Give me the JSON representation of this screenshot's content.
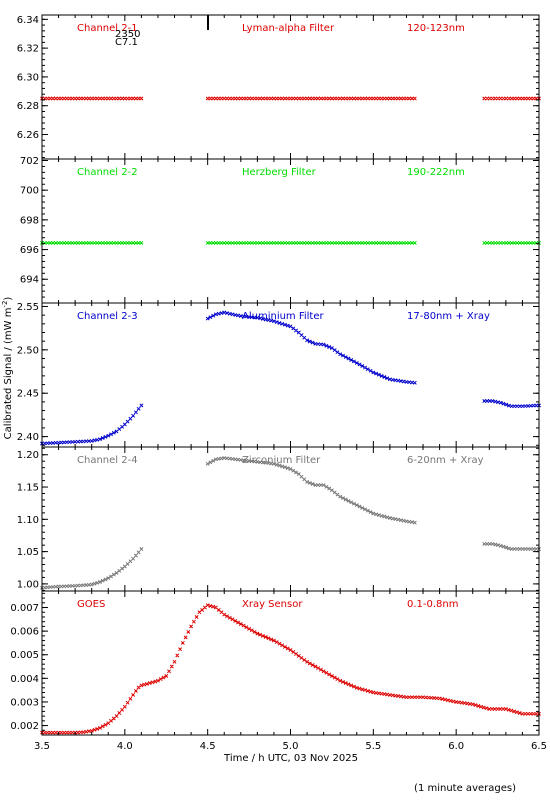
{
  "figure": {
    "xlabel": "Time / h UTC, 03 Nov 2025",
    "ylabel": "Calibrated Signal / (mW m",
    "ylabel_sup": "-2",
    "ylabel_close": ")",
    "footnote": "(1 minute averages)",
    "marker_text_1": "2350",
    "marker_text_2": "C7.1",
    "colors": {
      "red": "#dd0000",
      "green": "#00dd00",
      "blue": "#0000cc",
      "gray": "#777777"
    }
  },
  "chart_data": [
    {
      "type": "scatter",
      "name": "Channel 2-1",
      "filter": "Lyman-alpha Filter",
      "band": "120-123nm",
      "color": "#dd0000",
      "xlim": [
        3.5,
        6.5
      ],
      "ylim": [
        6.243,
        6.343
      ],
      "yticks": [
        6.26,
        6.28,
        6.3,
        6.32,
        6.34
      ],
      "yticklabels": [
        "6.26",
        "6.28",
        "6.30",
        "6.32",
        "6.34"
      ],
      "segments": [
        {
          "x": [
            3.5,
            4.1
          ],
          "y": [
            6.285,
            6.285
          ]
        },
        {
          "x": [
            4.5,
            5.75
          ],
          "y": [
            6.285,
            6.285
          ]
        },
        {
          "x": [
            6.17,
            6.5
          ],
          "y": [
            6.285,
            6.285
          ]
        }
      ]
    },
    {
      "type": "scatter",
      "name": "Channel 2-2",
      "filter": "Herzberg Filter",
      "band": "190-222nm",
      "color": "#00dd00",
      "xlim": [
        3.5,
        6.5
      ],
      "ylim": [
        692.4,
        702.1
      ],
      "yticks": [
        694,
        696,
        698,
        700,
        702
      ],
      "yticklabels": [
        "694",
        "696",
        "698",
        "700",
        "702"
      ],
      "segments": [
        {
          "x": [
            3.5,
            4.1
          ],
          "y": [
            696.45,
            696.45
          ]
        },
        {
          "x": [
            4.5,
            5.75
          ],
          "y": [
            696.45,
            696.45
          ]
        },
        {
          "x": [
            6.17,
            6.5
          ],
          "y": [
            696.45,
            696.45
          ]
        }
      ]
    },
    {
      "type": "scatter",
      "name": "Channel 2-3",
      "filter": "Aluminium Filter",
      "band": "17-80nm + Xray",
      "color": "#0000cc",
      "xlim": [
        3.5,
        6.5
      ],
      "ylim": [
        2.388,
        2.554
      ],
      "yticks": [
        2.4,
        2.45,
        2.5,
        2.55
      ],
      "yticklabels": [
        "2.40",
        "2.45",
        "2.50",
        "2.55"
      ],
      "segments": [
        {
          "x": [
            3.5,
            3.6,
            3.7,
            3.8,
            3.85,
            3.9,
            3.95,
            4.0,
            4.05,
            4.1
          ],
          "y": [
            2.392,
            2.393,
            2.394,
            2.395,
            2.397,
            2.401,
            2.406,
            2.414,
            2.424,
            2.436
          ]
        },
        {
          "x": [
            4.5,
            4.55,
            4.6,
            4.7,
            4.8,
            4.9,
            5.0,
            5.05,
            5.1,
            5.15,
            5.2,
            5.25,
            5.3,
            5.4,
            5.5,
            5.6,
            5.7,
            5.75
          ],
          "y": [
            2.536,
            2.541,
            2.543,
            2.539,
            2.537,
            2.533,
            2.527,
            2.52,
            2.511,
            2.507,
            2.506,
            2.502,
            2.495,
            2.485,
            2.474,
            2.466,
            2.463,
            2.462
          ]
        },
        {
          "x": [
            6.17,
            6.22,
            6.27,
            6.33,
            6.4,
            6.5
          ],
          "y": [
            2.441,
            2.441,
            2.439,
            2.435,
            2.435,
            2.436
          ]
        }
      ]
    },
    {
      "type": "scatter",
      "name": "Channel 2-4",
      "filter": "Zirconium Filter",
      "band": "6-20nm + Xray",
      "color": "#777777",
      "xlim": [
        3.5,
        6.5
      ],
      "ylim": [
        0.989,
        1.212
      ],
      "yticks": [
        1.0,
        1.05,
        1.1,
        1.15,
        1.2
      ],
      "yticklabels": [
        "1.00",
        "1.05",
        "1.10",
        "1.15",
        "1.20"
      ],
      "segments": [
        {
          "x": [
            3.5,
            3.6,
            3.7,
            3.8,
            3.85,
            3.9,
            3.95,
            4.0,
            4.05,
            4.1
          ],
          "y": [
            0.994,
            0.996,
            0.997,
            0.999,
            1.003,
            1.009,
            1.017,
            1.027,
            1.039,
            1.054
          ]
        },
        {
          "x": [
            4.5,
            4.55,
            4.6,
            4.7,
            4.8,
            4.9,
            5.0,
            5.05,
            5.1,
            5.15,
            5.2,
            5.25,
            5.3,
            5.4,
            5.5,
            5.6,
            5.7,
            5.75
          ],
          "y": [
            1.186,
            1.193,
            1.195,
            1.192,
            1.189,
            1.186,
            1.178,
            1.17,
            1.158,
            1.153,
            1.153,
            1.145,
            1.135,
            1.122,
            1.109,
            1.102,
            1.097,
            1.095
          ]
        },
        {
          "x": [
            6.17,
            6.22,
            6.27,
            6.33,
            6.4,
            6.5
          ],
          "y": [
            1.062,
            1.062,
            1.059,
            1.054,
            1.054,
            1.054
          ]
        }
      ]
    },
    {
      "type": "scatter",
      "name": "GOES",
      "filter": "Xray Sensor",
      "band": "0.1-0.8nm",
      "color": "#dd0000",
      "xlim": [
        3.5,
        6.5
      ],
      "ylim": [
        0.0016,
        0.0077
      ],
      "yticks": [
        0.002,
        0.003,
        0.004,
        0.005,
        0.006,
        0.007
      ],
      "yticklabels": [
        "0.002",
        "0.003",
        "0.004",
        "0.005",
        "0.006",
        "0.007"
      ],
      "segments": [
        {
          "x": [
            3.5,
            3.6,
            3.7,
            3.75,
            3.8,
            3.85,
            3.9,
            3.95,
            4.0,
            4.05,
            4.08,
            4.1,
            4.15,
            4.2,
            4.25,
            4.3,
            4.35,
            4.4,
            4.45,
            4.5,
            4.55,
            4.6,
            4.7,
            4.8,
            4.9,
            5.0,
            5.1,
            5.2,
            5.3,
            5.4,
            5.5,
            5.6,
            5.7,
            5.8,
            5.9,
            6.0,
            6.1,
            6.2,
            6.3,
            6.4,
            6.5
          ],
          "y": [
            0.0017,
            0.0017,
            0.0017,
            0.00172,
            0.00178,
            0.0019,
            0.0021,
            0.0024,
            0.0028,
            0.0033,
            0.0036,
            0.0037,
            0.0038,
            0.0039,
            0.0041,
            0.0047,
            0.0055,
            0.0062,
            0.0068,
            0.0071,
            0.007,
            0.0067,
            0.0063,
            0.0059,
            0.0056,
            0.0052,
            0.0047,
            0.0043,
            0.0039,
            0.0036,
            0.0034,
            0.0033,
            0.0032,
            0.0032,
            0.00315,
            0.003,
            0.0029,
            0.0027,
            0.0027,
            0.0025,
            0.0025
          ]
        }
      ]
    }
  ]
}
